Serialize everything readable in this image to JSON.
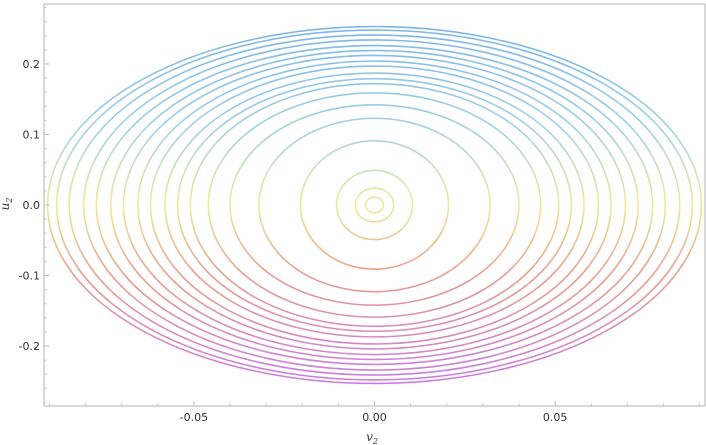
{
  "chart_data": {
    "type": "scatter",
    "title": "",
    "xlabel": "v",
    "xlabel_sub": "2",
    "ylabel": "u",
    "ylabel_sub": "2",
    "xlim": [
      -0.0915,
      0.0915
    ],
    "ylim": [
      -0.285,
      0.285
    ],
    "x_ticks": [
      -0.05,
      0.0,
      0.05
    ],
    "x_tick_labels": [
      "-0.05",
      "0.00",
      "0.05"
    ],
    "y_ticks": [
      -0.2,
      -0.1,
      0.0,
      0.1,
      0.2
    ],
    "y_tick_labels": [
      "-0.2",
      "-0.1",
      "0.0",
      "0.1",
      "0.2"
    ],
    "frame": true,
    "grid": false,
    "colormap": {
      "top": "#78b4ec",
      "upper": "#9ed0e6",
      "middle": "#eeec98",
      "lower": "#e9a08c",
      "bottom": "#c77ae8"
    },
    "series": [
      {
        "v_amplitude": 0.0025,
        "u_amplitude": 0.011
      },
      {
        "v_amplitude": 0.0053,
        "u_amplitude": 0.024
      },
      {
        "v_amplitude": 0.0105,
        "u_amplitude": 0.049
      },
      {
        "v_amplitude": 0.0205,
        "u_amplitude": 0.091
      },
      {
        "v_amplitude": 0.032,
        "u_amplitude": 0.123
      },
      {
        "v_amplitude": 0.04,
        "u_amplitude": 0.142
      },
      {
        "v_amplitude": 0.046,
        "u_amplitude": 0.159
      },
      {
        "v_amplitude": 0.051,
        "u_amplitude": 0.172
      },
      {
        "v_amplitude": 0.0545,
        "u_amplitude": 0.179
      },
      {
        "v_amplitude": 0.058,
        "u_amplitude": 0.187
      },
      {
        "v_amplitude": 0.062,
        "u_amplitude": 0.197
      },
      {
        "v_amplitude": 0.0655,
        "u_amplitude": 0.204
      },
      {
        "v_amplitude": 0.0695,
        "u_amplitude": 0.212
      },
      {
        "v_amplitude": 0.073,
        "u_amplitude": 0.219
      },
      {
        "v_amplitude": 0.077,
        "u_amplitude": 0.226
      },
      {
        "v_amplitude": 0.0805,
        "u_amplitude": 0.234
      },
      {
        "v_amplitude": 0.0845,
        "u_amplitude": 0.241
      },
      {
        "v_amplitude": 0.088,
        "u_amplitude": 0.248
      },
      {
        "v_amplitude": 0.0905,
        "u_amplitude": 0.253
      }
    ]
  }
}
